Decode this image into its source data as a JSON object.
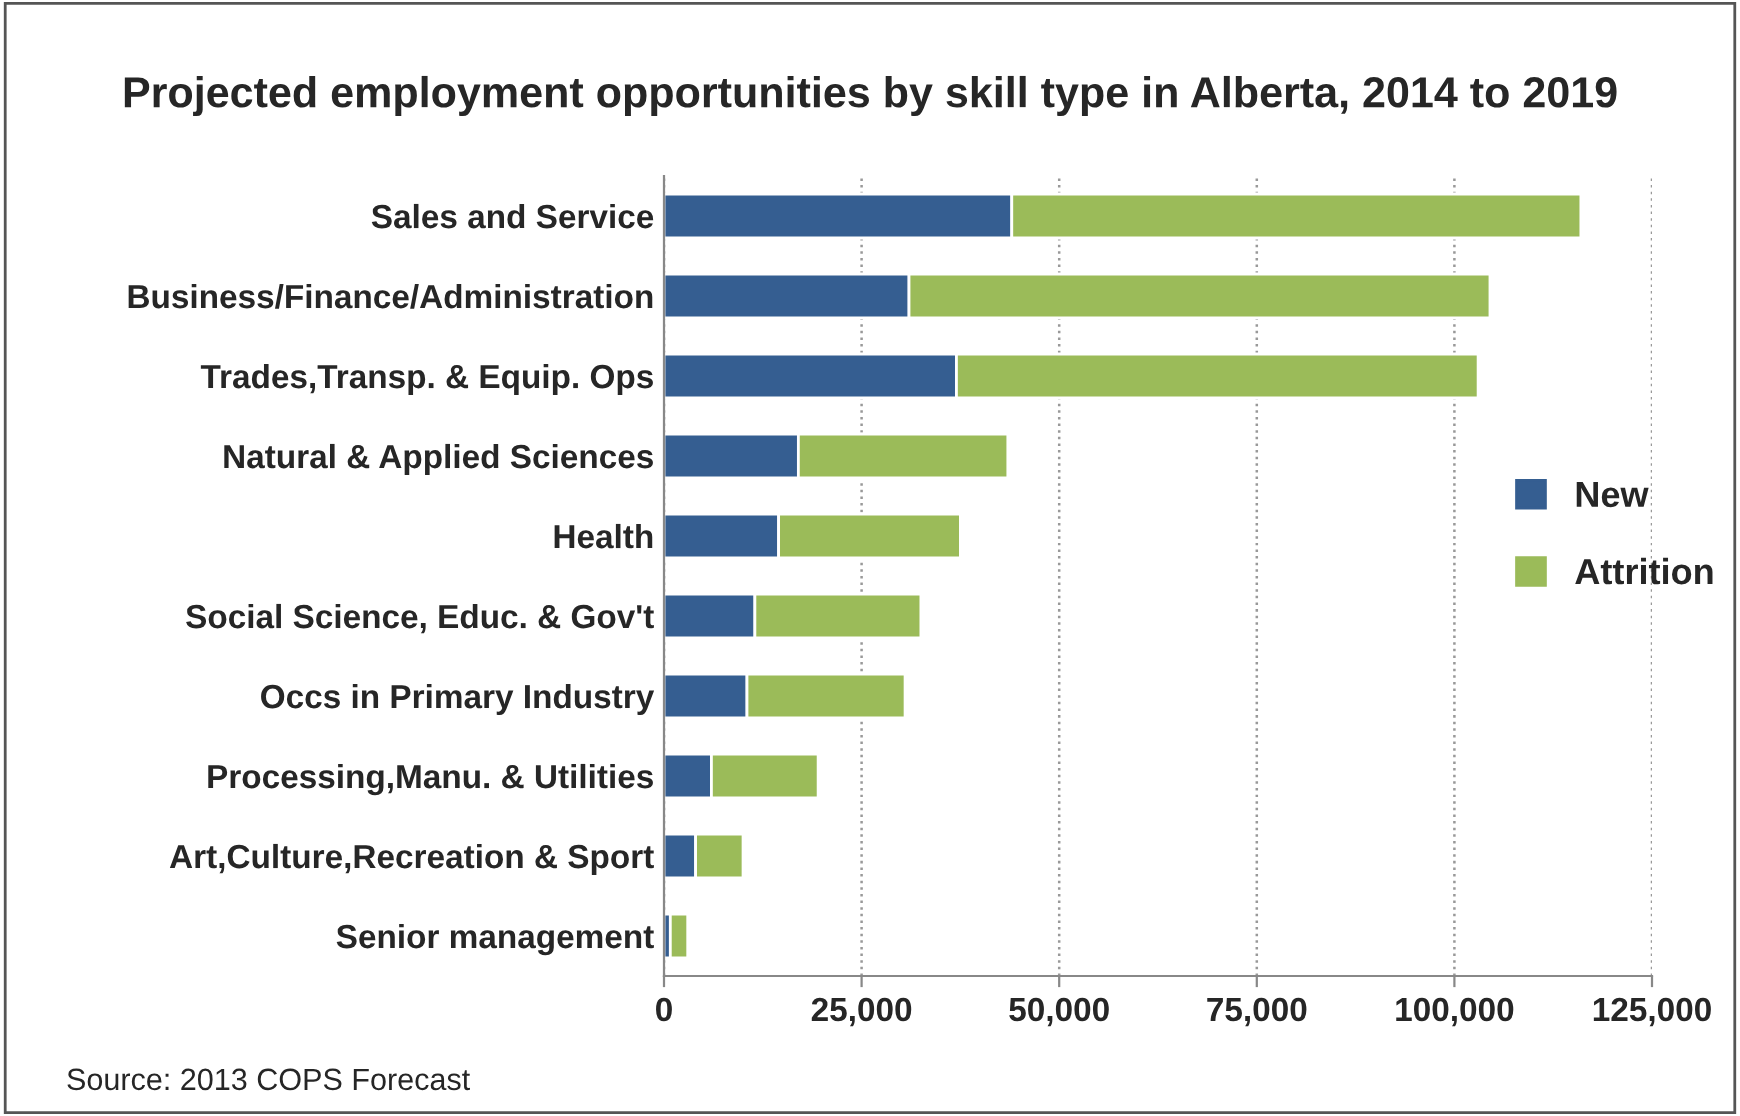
{
  "chart_data": {
    "type": "bar",
    "orientation": "horizontal",
    "stacked": true,
    "title": "Projected employment opportunities by skill type in Alberta, 2014 to 2019",
    "categories": [
      "Sales and Service",
      "Business/Finance/Administration",
      "Trades,Transp. & Equip. Ops",
      "Natural & Applied Sciences",
      "Health",
      "Social Science, Educ. & Gov't",
      "Occs in Primary Industry",
      "Processing,Manu. & Utilities",
      "Art,Culture,Recreation & Sport",
      "Senior management"
    ],
    "series": [
      {
        "name": "New",
        "color": "#355e91",
        "values": [
          44000,
          31000,
          37000,
          17000,
          14500,
          11500,
          10500,
          6000,
          4000,
          800
        ]
      },
      {
        "name": "Attrition",
        "color": "#9bbb59",
        "values": [
          72000,
          73500,
          66000,
          26500,
          23000,
          21000,
          20000,
          13500,
          6000,
          2200
        ]
      }
    ],
    "xlim": [
      0,
      125000
    ],
    "xticks": [
      {
        "value": 0,
        "label": "0"
      },
      {
        "value": 25000,
        "label": "25,000"
      },
      {
        "value": 50000,
        "label": "50,000"
      },
      {
        "value": 75000,
        "label": "75,000"
      },
      {
        "value": 100000,
        "label": "100,000"
      },
      {
        "value": 125000,
        "label": "125,000"
      }
    ],
    "legend": "right",
    "grid": "x",
    "annotations": [
      "Source: 2013 COPS Forecast"
    ]
  }
}
